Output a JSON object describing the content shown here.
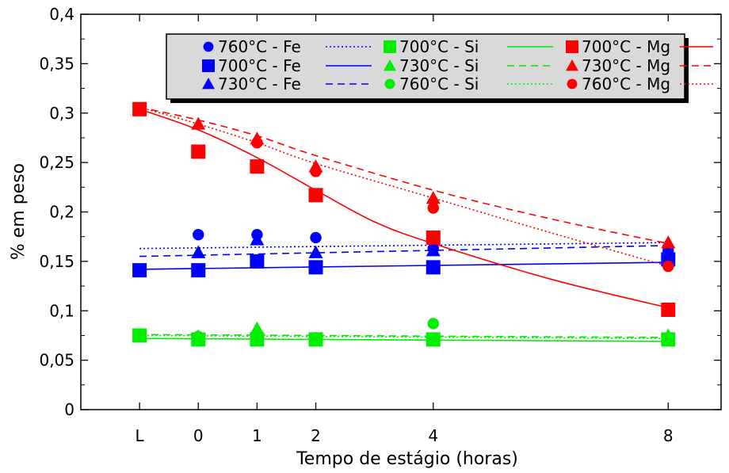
{
  "chart_data": {
    "type": "scatter",
    "title": "",
    "xlabel": "Tempo de estágio (horas)",
    "ylabel": "% em peso",
    "x_categories": [
      {
        "label": "L",
        "value": -1
      },
      {
        "label": "0",
        "value": 0
      },
      {
        "label": "1",
        "value": 1
      },
      {
        "label": "2",
        "value": 2
      },
      {
        "label": "4",
        "value": 4
      },
      {
        "label": "8",
        "value": 8
      }
    ],
    "xlim": [
      -2.0,
      8.9
    ],
    "ylim": [
      0,
      0.4
    ],
    "yticks": [
      {
        "label": "0",
        "value": 0
      },
      {
        "label": "0,05",
        "value": 0.05
      },
      {
        "label": "0,1",
        "value": 0.1
      },
      {
        "label": "0,15",
        "value": 0.15
      },
      {
        "label": "0,2",
        "value": 0.2
      },
      {
        "label": "0,25",
        "value": 0.25
      },
      {
        "label": "0,3",
        "value": 0.3
      },
      {
        "label": "0,35",
        "value": 0.35
      },
      {
        "label": "0,4",
        "value": 0.4
      }
    ],
    "legend_position": "top-right",
    "series": [
      {
        "name": "760°C - Fe",
        "marker": "circle",
        "color": "#0000ff",
        "line": "dotted",
        "points": [
          [
            0,
            0.177
          ],
          [
            1,
            0.177
          ],
          [
            2,
            0.174
          ],
          [
            4,
            0.163
          ],
          [
            8,
            0.161
          ]
        ],
        "fit": [
          [
            -1,
            0.163
          ],
          [
            8,
            0.169
          ]
        ]
      },
      {
        "name": "700°C - Fe",
        "marker": "square",
        "color": "#0000ff",
        "line": "solid",
        "points": [
          [
            -1,
            0.141
          ],
          [
            0,
            0.141
          ],
          [
            1,
            0.15
          ],
          [
            2,
            0.144
          ],
          [
            4,
            0.144
          ],
          [
            8,
            0.152
          ]
        ],
        "fit": [
          [
            -1,
            0.142
          ],
          [
            8,
            0.149
          ]
        ]
      },
      {
        "name": "730°C - Fe",
        "marker": "triangle",
        "color": "#0000ff",
        "line": "dashed",
        "points": [
          [
            0,
            0.159
          ],
          [
            1,
            0.172
          ],
          [
            2,
            0.159
          ],
          [
            4,
            0.161
          ],
          [
            8,
            0.155
          ]
        ],
        "fit": [
          [
            -1,
            0.155
          ],
          [
            8,
            0.166
          ]
        ]
      },
      {
        "name": "700°C - Si",
        "marker": "square",
        "color": "#00ee00",
        "line": "solid",
        "points": [
          [
            -1,
            0.075
          ],
          [
            0,
            0.071
          ],
          [
            1,
            0.071
          ],
          [
            2,
            0.071
          ],
          [
            4,
            0.071
          ],
          [
            8,
            0.071
          ]
        ],
        "fit": [
          [
            -1,
            0.072
          ],
          [
            8,
            0.069
          ]
        ]
      },
      {
        "name": "730°C - Si",
        "marker": "triangle",
        "color": "#00ee00",
        "line": "dashed",
        "points": [
          [
            -1,
            0.075
          ],
          [
            0,
            0.074
          ],
          [
            1,
            0.082
          ],
          [
            2,
            0.072
          ],
          [
            4,
            0.071
          ],
          [
            8,
            0.075
          ]
        ],
        "fit": [
          [
            -1,
            0.076
          ],
          [
            8,
            0.073
          ]
        ]
      },
      {
        "name": "760°C - Si",
        "marker": "circle",
        "color": "#00ee00",
        "line": "dotted",
        "points": [
          [
            0,
            0.074
          ],
          [
            1,
            0.072
          ],
          [
            2,
            0.071
          ],
          [
            4,
            0.087
          ],
          [
            8,
            0.072
          ]
        ],
        "fit": [
          [
            -1,
            0.075
          ],
          [
            8,
            0.072
          ]
        ]
      },
      {
        "name": "700°C - Mg",
        "marker": "square",
        "color": "#ff0000",
        "line": "solid",
        "points": [
          [
            -1,
            0.304
          ],
          [
            0,
            0.261
          ],
          [
            1,
            0.246
          ],
          [
            2,
            0.217
          ],
          [
            4,
            0.174
          ],
          [
            8,
            0.101
          ]
        ],
        "fit": [
          [
            -1,
            0.304
          ],
          [
            0,
            0.283
          ],
          [
            1,
            0.255
          ],
          [
            2,
            0.222
          ],
          [
            3,
            0.19
          ],
          [
            4,
            0.168
          ],
          [
            6,
            0.132
          ],
          [
            8,
            0.103
          ]
        ]
      },
      {
        "name": "730°C - Mg",
        "marker": "triangle",
        "color": "#ff0000",
        "line": "dashed",
        "points": [
          [
            0,
            0.289
          ],
          [
            1,
            0.274
          ],
          [
            2,
            0.246
          ],
          [
            4,
            0.214
          ],
          [
            8,
            0.169
          ]
        ],
        "fit": [
          [
            -1,
            0.306
          ],
          [
            0,
            0.293
          ],
          [
            1,
            0.277
          ],
          [
            2,
            0.257
          ],
          [
            4,
            0.222
          ],
          [
            6,
            0.193
          ],
          [
            8,
            0.168
          ]
        ]
      },
      {
        "name": "760°C - Mg",
        "marker": "circle",
        "color": "#ff0000",
        "line": "dotted",
        "points": [
          [
            1,
            0.27
          ],
          [
            2,
            0.241
          ],
          [
            4,
            0.204
          ],
          [
            8,
            0.145
          ]
        ],
        "fit": [
          [
            -1,
            0.306
          ],
          [
            0,
            0.289
          ],
          [
            1,
            0.27
          ],
          [
            2,
            0.249
          ],
          [
            4,
            0.214
          ],
          [
            6,
            0.179
          ],
          [
            8,
            0.145
          ]
        ]
      }
    ]
  },
  "legend_layout": [
    [
      "760°C - Fe",
      "700°C - Si",
      "700°C - Mg"
    ],
    [
      "700°C - Fe",
      "730°C - Si",
      "730°C - Mg"
    ],
    [
      "730°C - Fe",
      "760°C - Si",
      "760°C - Mg"
    ]
  ]
}
